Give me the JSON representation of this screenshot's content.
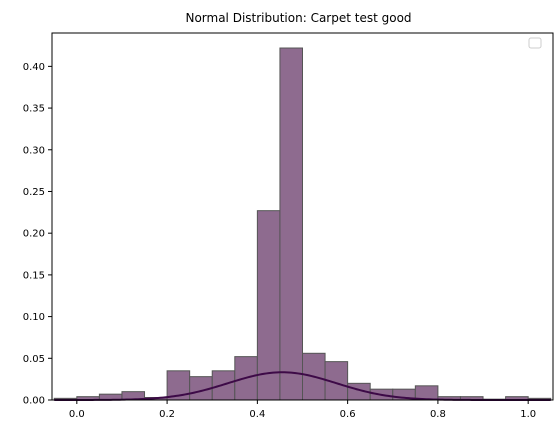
{
  "chart_data": {
    "type": "histogram",
    "title": "Normal Distribution: Carpet test good",
    "xlabel": "",
    "ylabel": "",
    "xlim": [
      -0.055,
      1.055
    ],
    "ylim": [
      0,
      0.44
    ],
    "x_ticks": [
      0.0,
      0.2,
      0.4,
      0.6,
      0.8,
      1.0
    ],
    "x_tick_labels": [
      "0.0",
      "0.2",
      "0.4",
      "0.6",
      "0.8",
      "1.0"
    ],
    "y_ticks": [
      0.0,
      0.05,
      0.1,
      0.15,
      0.2,
      0.25,
      0.3,
      0.35,
      0.4
    ],
    "y_tick_labels": [
      "0.00",
      "0.05",
      "0.10",
      "0.15",
      "0.20",
      "0.25",
      "0.30",
      "0.35",
      "0.40"
    ],
    "grid": false,
    "legend": {
      "placement": "top-right",
      "entries": []
    },
    "histogram": {
      "bin_edges": [
        -0.05,
        0.0,
        0.05,
        0.1,
        0.15,
        0.2,
        0.25,
        0.3,
        0.35,
        0.4,
        0.45,
        0.5,
        0.55,
        0.6,
        0.65,
        0.7,
        0.75,
        0.8,
        0.85,
        0.9,
        0.95,
        1.0,
        1.05
      ],
      "values": [
        0.002,
        0.004,
        0.007,
        0.01,
        0.003,
        0.035,
        0.028,
        0.035,
        0.052,
        0.227,
        0.422,
        0.056,
        0.046,
        0.02,
        0.013,
        0.013,
        0.017,
        0.004,
        0.004,
        0.001,
        0.004,
        0.002
      ],
      "fill_color": "#8e6b8f",
      "edge_color": "#555555"
    },
    "curve": {
      "type": "normal_pdf",
      "mean": 0.455,
      "std": 0.12,
      "scale": 0.01,
      "color": "#3d0a47"
    }
  }
}
